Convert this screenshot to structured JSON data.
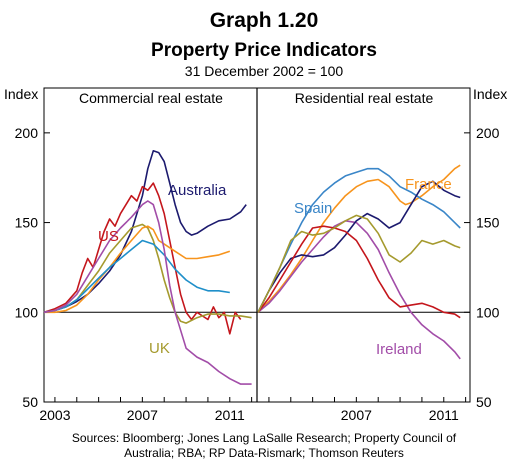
{
  "colors": {
    "Australia": "#1c1a6e",
    "US": "#c4161c",
    "UK": "#a59a2e",
    "France": "#f7941d",
    "Spain": "#3a86c8",
    "Ireland": "#a24da8",
    "Other": "#1f8fc9"
  },
  "chart_data": {
    "type": "line",
    "title": "Graph 1.20",
    "subtitle": "Property Price Indicators",
    "base_note": "31 December 2002 = 100",
    "y_axis_label_left": "Index",
    "y_axis_label_right": "Index",
    "ylim": [
      50,
      225
    ],
    "y_ticks": [
      50,
      100,
      150,
      200
    ],
    "source": [
      "Sources: Bloomberg; Jones Lang LaSalle Research; Property Council of",
      "Australia; RBA; RP Data-Rismark; Thomson Reuters"
    ],
    "panels": [
      {
        "title": "Commercial real estate",
        "xlim": [
          2002.5,
          2012.2
        ],
        "x_ticks": [
          "2003",
          "2007",
          "2011"
        ],
        "x_tick_values": [
          2003,
          2007,
          2011
        ],
        "series": [
          {
            "name": "Australia",
            "x": [
              2002.5,
              2003,
              2003.5,
              2004,
              2004.5,
              2005,
              2005.5,
              2006,
              2006.5,
              2007,
              2007.25,
              2007.5,
              2007.75,
              2008,
              2008.25,
              2008.5,
              2008.75,
              2009,
              2009.25,
              2009.5,
              2010,
              2010.5,
              2011,
              2011.5,
              2011.75
            ],
            "y": [
              100,
              101,
              103,
              106,
              110,
              116,
              123,
              132,
              145,
              165,
              180,
              190,
              189,
              184,
              172,
              160,
              150,
              145,
              143,
              144,
              148,
              151,
              152,
              156,
              160
            ]
          },
          {
            "name": "US",
            "x": [
              2002.5,
              2003,
              2003.5,
              2004,
              2004.25,
              2004.5,
              2004.75,
              2005,
              2005.25,
              2005.5,
              2005.75,
              2006,
              2006.25,
              2006.5,
              2006.75,
              2007,
              2007.25,
              2007.5,
              2007.75,
              2008,
              2008.25,
              2008.5,
              2008.75,
              2009,
              2009.25,
              2009.5,
              2010,
              2010.25,
              2010.5,
              2010.75,
              2011,
              2011.25,
              2011.5
            ],
            "y": [
              100,
              102,
              105,
              112,
              122,
              130,
              125,
              135,
              145,
              152,
              148,
              155,
              160,
              165,
              162,
              170,
              168,
              172,
              165,
              155,
              140,
              125,
              110,
              100,
              96,
              100,
              96,
              103,
              97,
              100,
              88,
              100,
              96
            ]
          },
          {
            "name": "UK",
            "x": [
              2002.5,
              2003,
              2003.5,
              2004,
              2004.5,
              2005,
              2005.5,
              2006,
              2006.5,
              2007,
              2007.25,
              2007.5,
              2007.75,
              2008,
              2008.25,
              2008.5,
              2008.75,
              2009,
              2009.5,
              2010,
              2010.5,
              2011,
              2011.5,
              2012
            ],
            "y": [
              100,
              101,
              103,
              107,
              115,
              123,
              133,
              140,
              147,
              149,
              147,
              140,
              130,
              118,
              108,
              100,
              95,
              94,
              97,
              99,
              99,
              98,
              98,
              97
            ]
          },
          {
            "name": "Unlabelled (orange)",
            "color": "#f7941d",
            "x": [
              2002.5,
              2003,
              2003.5,
              2004,
              2004.5,
              2005,
              2005.5,
              2006,
              2006.5,
              2007,
              2007.25,
              2007.5,
              2007.75,
              2008,
              2008.5,
              2009,
              2009.5,
              2010,
              2010.5,
              2011
            ],
            "y": [
              100,
              100,
              101,
              104,
              110,
              118,
              125,
              133,
              140,
              147,
              148,
              146,
              140,
              138,
              134,
              130,
              130,
              131,
              132,
              134
            ]
          },
          {
            "name": "Unlabelled (blue)",
            "color": "#1f8fc9",
            "x": [
              2002.5,
              2003,
              2003.5,
              2004,
              2004.5,
              2005,
              2005.5,
              2006,
              2006.5,
              2007,
              2007.5,
              2008,
              2008.5,
              2009,
              2009.5,
              2010,
              2010.5,
              2011
            ],
            "y": [
              100,
              101,
              103,
              107,
              113,
              119,
              125,
              130,
              135,
              140,
              138,
              132,
              124,
              118,
              114,
              112,
              112,
              111
            ]
          },
          {
            "name": "Unlabelled (purple)",
            "color": "#a24da8",
            "x": [
              2002.5,
              2003,
              2003.5,
              2004,
              2004.5,
              2005,
              2005.5,
              2006,
              2006.5,
              2007,
              2007.25,
              2007.5,
              2007.75,
              2008,
              2008.25,
              2008.5,
              2008.75,
              2009,
              2009.5,
              2010,
              2010.5,
              2011,
              2011.5,
              2012
            ],
            "y": [
              100,
              101,
              104,
              110,
              120,
              130,
              140,
              147,
              153,
              160,
              162,
              160,
              150,
              135,
              115,
              100,
              90,
              80,
              75,
              72,
              67,
              63,
              60,
              60
            ]
          }
        ]
      },
      {
        "title": "Residential real estate",
        "xlim": [
          2002.5,
          2012.2
        ],
        "x_ticks": [
          "2007",
          "2011"
        ],
        "x_tick_values": [
          2007,
          2011
        ],
        "series": [
          {
            "name": "France",
            "x": [
              2002.5,
              2003,
              2003.5,
              2004,
              2004.5,
              2005,
              2005.5,
              2006,
              2006.5,
              2007,
              2007.5,
              2008,
              2008.5,
              2009,
              2009.25,
              2009.5,
              2010,
              2010.5,
              2011,
              2011.5,
              2011.75
            ],
            "y": [
              100,
              106,
              113,
              121,
              130,
              140,
              150,
              158,
              165,
              170,
              173,
              174,
              170,
              162,
              160,
              161,
              165,
              170,
              174,
              180,
              182
            ]
          },
          {
            "name": "Spain",
            "x": [
              2002.5,
              2003,
              2003.5,
              2004,
              2004.5,
              2005,
              2005.5,
              2006,
              2006.5,
              2007,
              2007.5,
              2008,
              2008.5,
              2009,
              2009.5,
              2010,
              2010.5,
              2011,
              2011.5,
              2011.75
            ],
            "y": [
              100,
              112,
              125,
              138,
              150,
              160,
              167,
              172,
              176,
              178,
              180,
              180,
              176,
              170,
              167,
              163,
              160,
              156,
              150,
              147
            ]
          },
          {
            "name": "Ireland",
            "x": [
              2002.5,
              2003,
              2003.5,
              2004,
              2004.5,
              2005,
              2005.5,
              2006,
              2006.5,
              2007,
              2007.5,
              2008,
              2008.5,
              2009,
              2009.5,
              2010,
              2010.5,
              2011,
              2011.5,
              2011.75
            ],
            "y": [
              100,
              105,
              112,
              120,
              128,
              135,
              142,
              148,
              151,
              150,
              144,
              135,
              122,
              110,
              100,
              93,
              88,
              84,
              78,
              74
            ]
          },
          {
            "name": "Australia",
            "x": [
              2002.5,
              2003,
              2003.5,
              2004,
              2004.5,
              2005,
              2005.5,
              2006,
              2006.5,
              2007,
              2007.5,
              2008,
              2008.5,
              2009,
              2009.5,
              2010,
              2010.5,
              2011,
              2011.5,
              2011.75
            ],
            "y": [
              100,
              112,
              122,
              130,
              132,
              131,
              132,
              136,
              143,
              151,
              155,
              152,
              147,
              150,
              160,
              170,
              173,
              168,
              165,
              164
            ]
          },
          {
            "name": "US",
            "x": [
              2002.5,
              2003,
              2003.5,
              2004,
              2004.5,
              2005,
              2005.5,
              2006,
              2006.5,
              2007,
              2007.5,
              2008,
              2008.5,
              2009,
              2009.5,
              2010,
              2010.5,
              2011,
              2011.5,
              2011.75
            ],
            "y": [
              100,
              108,
              118,
              128,
              138,
              147,
              148,
              147,
              145,
              140,
              130,
              118,
              108,
              103,
              104,
              105,
              103,
              100,
              99,
              97
            ]
          },
          {
            "name": "UK",
            "x": [
              2002.5,
              2003,
              2003.5,
              2004,
              2004.5,
              2005,
              2005.5,
              2006,
              2006.5,
              2007,
              2007.5,
              2008,
              2008.5,
              2009,
              2009.5,
              2010,
              2010.5,
              2011,
              2011.5,
              2011.75
            ],
            "y": [
              100,
              112,
              125,
              140,
              145,
              143,
              144,
              147,
              151,
              154,
              152,
              144,
              132,
              128,
              133,
              140,
              138,
              140,
              137,
              136
            ]
          }
        ]
      }
    ],
    "annotations": [
      {
        "text": "Australia",
        "panel": 0,
        "color_key": "Australia"
      },
      {
        "text": "US",
        "panel": 0,
        "color_key": "US"
      },
      {
        "text": "UK",
        "panel": 0,
        "color_key": "UK"
      },
      {
        "text": "Spain",
        "panel": 1,
        "color_key": "Spain"
      },
      {
        "text": "France",
        "panel": 1,
        "color_key": "France"
      },
      {
        "text": "Ireland",
        "panel": 1,
        "color_key": "Ireland"
      }
    ]
  }
}
